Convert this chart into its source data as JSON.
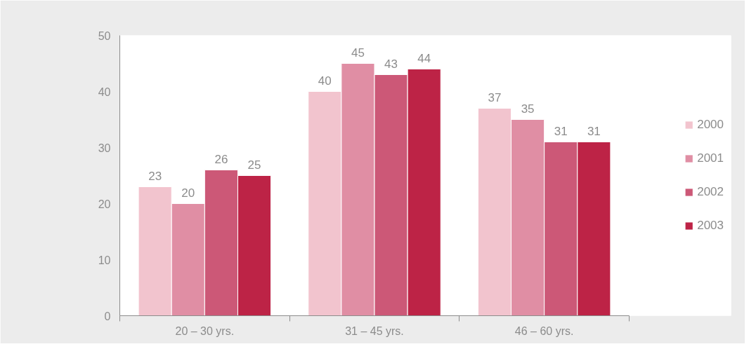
{
  "chart_data": {
    "type": "bar",
    "categories": [
      "20 – 30 yrs.",
      "31 – 45 yrs.",
      "46 – 60 yrs."
    ],
    "series": [
      {
        "name": "2000",
        "color": "#f2c4ce",
        "values": [
          23,
          40,
          37
        ]
      },
      {
        "name": "2001",
        "color": "#e08ea4",
        "values": [
          20,
          45,
          35
        ]
      },
      {
        "name": "2002",
        "color": "#cc5877",
        "values": [
          26,
          43,
          31
        ]
      },
      {
        "name": "2003",
        "color": "#bd2346",
        "values": [
          25,
          44,
          31
        ]
      }
    ],
    "ylim": [
      0,
      50
    ],
    "yticks": [
      0,
      10,
      20,
      30,
      40,
      50
    ],
    "grid": false,
    "legend": "right",
    "data_labels": true
  }
}
